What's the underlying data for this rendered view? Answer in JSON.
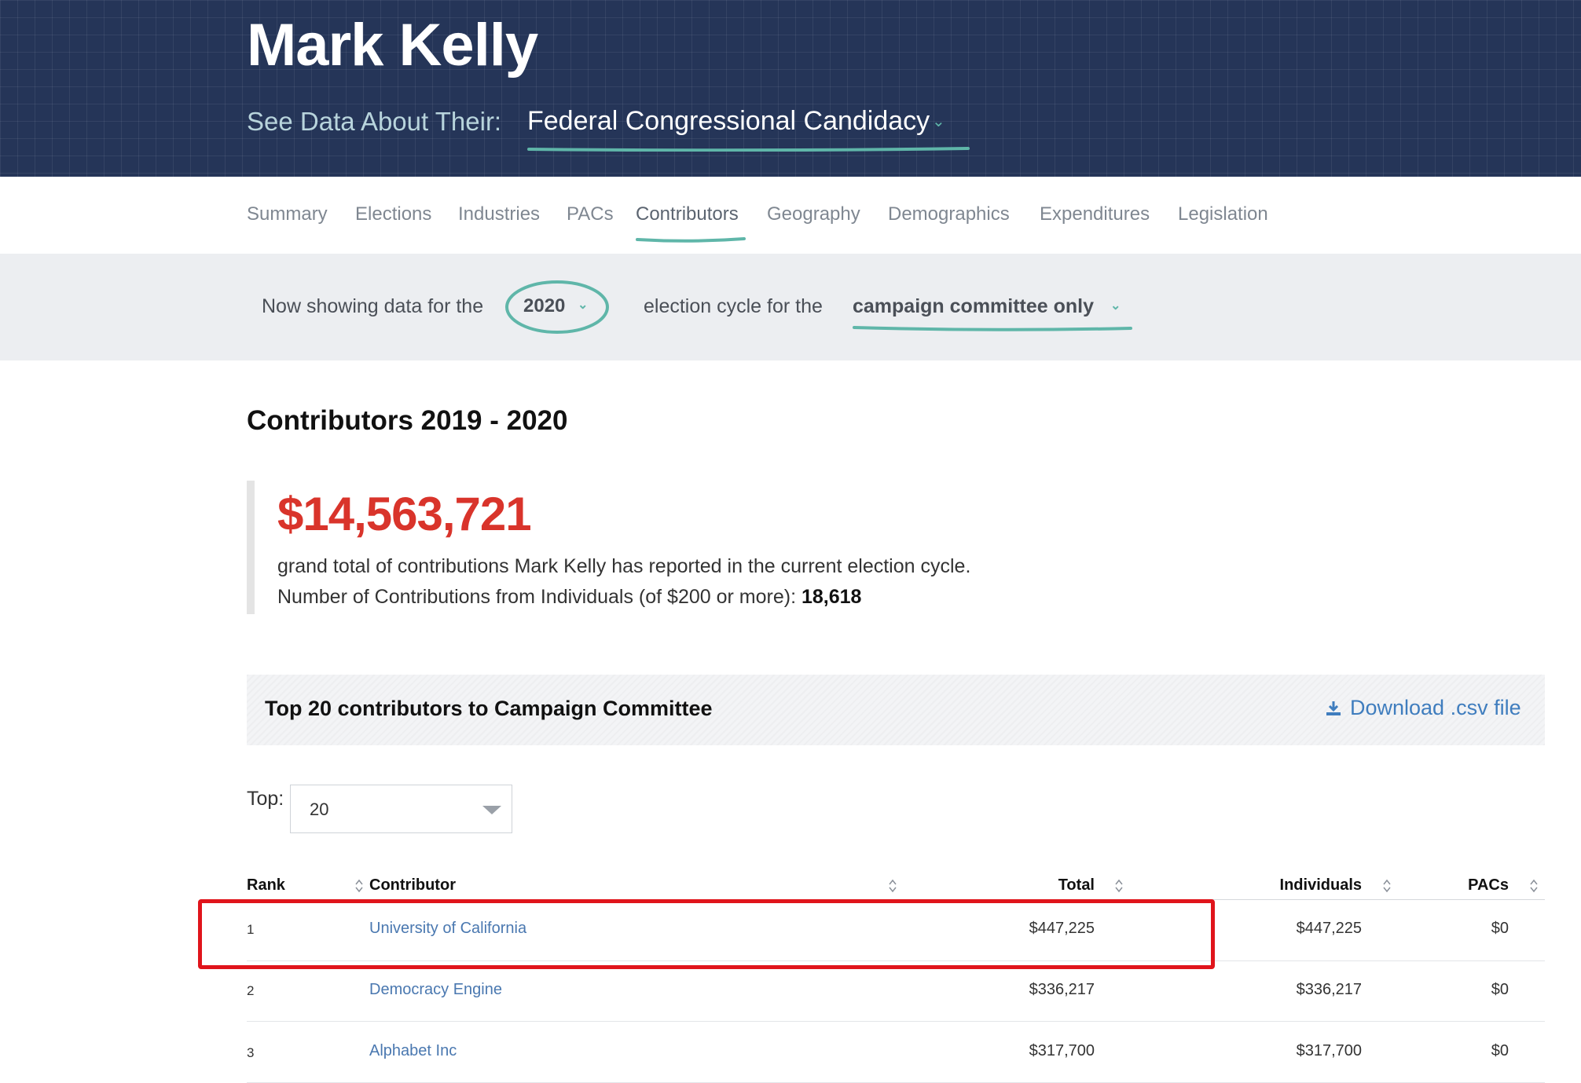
{
  "header": {
    "name": "Mark Kelly",
    "see_data_label": "See Data About Their:",
    "candidacy": "Federal Congressional Candidacy"
  },
  "tabs": [
    {
      "label": "Summary"
    },
    {
      "label": "Elections"
    },
    {
      "label": "Industries"
    },
    {
      "label": "PACs"
    },
    {
      "label": "Contributors",
      "active": true
    },
    {
      "label": "Geography"
    },
    {
      "label": "Demographics"
    },
    {
      "label": "Expenditures"
    },
    {
      "label": "Legislation"
    }
  ],
  "cycle": {
    "prefix": "Now showing data for the",
    "year": "2020",
    "middle": "election cycle for the",
    "committee": "campaign committee only"
  },
  "main": {
    "title": "Contributors 2019 - 2020",
    "grand_total": "$14,563,721",
    "description": "grand total of contributions Mark Kelly has reported in the current election cycle.",
    "count_label": "Number of Contributions from Individuals (of $200 or more):",
    "count_value": "18,618"
  },
  "top_bar": {
    "title": "Top 20 contributors to Campaign Committee",
    "download_label": "Download .csv file"
  },
  "top_select": {
    "label": "Top:",
    "value": "20"
  },
  "table": {
    "headers": {
      "rank": "Rank",
      "contributor": "Contributor",
      "total": "Total",
      "individuals": "Individuals",
      "pacs": "PACs"
    },
    "rows": [
      {
        "rank": "1",
        "contributor": "University of California",
        "total": "$447,225",
        "individuals": "$447,225",
        "pacs": "$0"
      },
      {
        "rank": "2",
        "contributor": "Democracy Engine",
        "total": "$336,217",
        "individuals": "$336,217",
        "pacs": "$0"
      },
      {
        "rank": "3",
        "contributor": "Alphabet Inc",
        "total": "$317,700",
        "individuals": "$317,700",
        "pacs": "$0"
      }
    ]
  },
  "colors": {
    "header_bg": "#253558",
    "accent_teal": "#5fb6a9",
    "total_red": "#d9342b",
    "link_blue": "#4a78b0",
    "highlight_red": "#e0141b"
  }
}
